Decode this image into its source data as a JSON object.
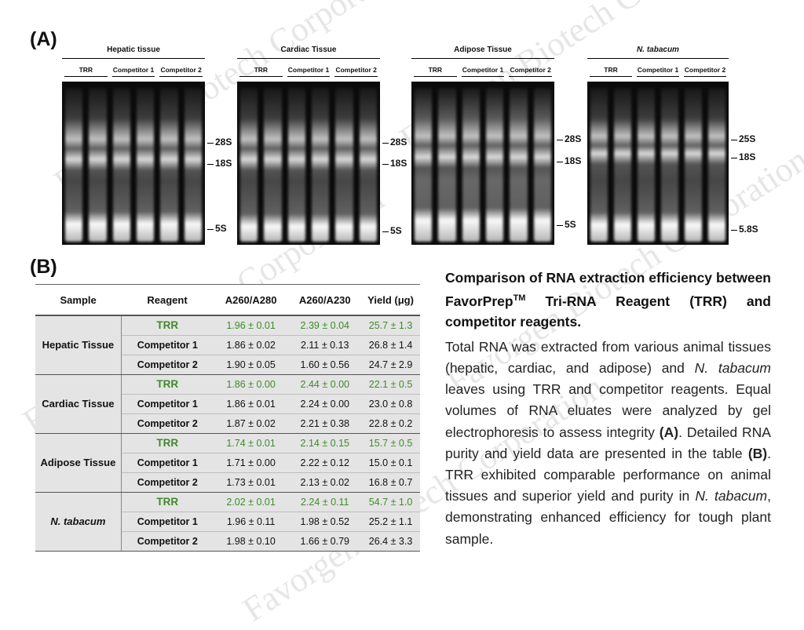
{
  "panel_a_label": "(A)",
  "panel_b_label": "(B)",
  "gels": [
    {
      "title": "Hepatic tissue",
      "title_italic": false,
      "lanes": [
        "TRR",
        "Competitor 1",
        "Competitor 2"
      ],
      "markers": [
        "28S",
        "18S",
        "5S"
      ]
    },
    {
      "title": "Cardiac Tissue",
      "title_italic": false,
      "lanes": [
        "TRR",
        "Competitor 1",
        "Competitor 2"
      ],
      "markers": [
        "28S",
        "18S",
        "5S"
      ]
    },
    {
      "title": "Adipose Tissue",
      "title_italic": false,
      "lanes": [
        "TRR",
        "Competitor 1",
        "Competitor 2"
      ],
      "markers": [
        "28S",
        "18S",
        "5S"
      ]
    },
    {
      "title": "N. tabacum",
      "title_italic": true,
      "lanes": [
        "TRR",
        "Competitor 1",
        "Competitor 2"
      ],
      "markers": [
        "25S",
        "18S",
        "5.8S"
      ]
    }
  ],
  "table": {
    "headers": [
      "Sample",
      "Reagent",
      "A260/A280",
      "A260/A230",
      "Yield (μg)"
    ],
    "groups": [
      {
        "sample": "Hepatic Tissue",
        "italic": false,
        "rows": [
          {
            "reagent": "TRR",
            "a280": "1.96 ± 0.01",
            "a230": "2.39 ± 0.04",
            "yield": "25.7 ± 1.3",
            "highlight": true
          },
          {
            "reagent": "Competitor 1",
            "a280": "1.86 ± 0.02",
            "a230": "2.11 ± 0.13",
            "yield": "26.8 ± 1.4",
            "highlight": false
          },
          {
            "reagent": "Competitor 2",
            "a280": "1.90 ± 0.05",
            "a230": "1.60 ± 0.56",
            "yield": "24.7 ± 2.9",
            "highlight": false
          }
        ]
      },
      {
        "sample": "Cardiac Tissue",
        "italic": false,
        "rows": [
          {
            "reagent": "TRR",
            "a280": "1.86 ± 0.00",
            "a230": "2.44 ± 0.00",
            "yield": "22.1 ± 0.5",
            "highlight": true
          },
          {
            "reagent": "Competitor 1",
            "a280": "1.86 ± 0.01",
            "a230": "2.24 ± 0.00",
            "yield": "23.0 ± 0.8",
            "highlight": false
          },
          {
            "reagent": "Competitor 2",
            "a280": "1.87 ± 0.02",
            "a230": "2.21 ± 0.38",
            "yield": "22.8 ± 0.2",
            "highlight": false
          }
        ]
      },
      {
        "sample": "Adipose Tissue",
        "italic": false,
        "rows": [
          {
            "reagent": "TRR",
            "a280": "1.74 ± 0.01",
            "a230": "2.14 ± 0.15",
            "yield": "15.7 ± 0.5",
            "highlight": true
          },
          {
            "reagent": "Competitor 1",
            "a280": "1.71 ± 0.00",
            "a230": "2.22 ± 0.12",
            "yield": "15.0 ± 0.1",
            "highlight": false
          },
          {
            "reagent": "Competitor 2",
            "a280": "1.73 ± 0.01",
            "a230": "2.13 ± 0.02",
            "yield": "16.8 ± 0.7",
            "highlight": false
          }
        ]
      },
      {
        "sample": "N. tabacum",
        "italic": true,
        "rows": [
          {
            "reagent": "TRR",
            "a280": "2.02 ± 0.01",
            "a230": "2.24 ± 0.11",
            "yield": "54.7 ± 1.0",
            "highlight": true
          },
          {
            "reagent": "Competitor 1",
            "a280": "1.96 ± 0.11",
            "a230": "1.98 ± 0.52",
            "yield": "25.2 ± 1.1",
            "highlight": false
          },
          {
            "reagent": "Competitor 2",
            "a280": "1.98 ± 0.10",
            "a230": "1.66 ± 0.79",
            "yield": "26.4 ± 3.3",
            "highlight": false
          }
        ]
      }
    ]
  },
  "caption": {
    "title_pre": "Comparison of RNA extraction efficiency between FavorPrep",
    "title_sup": "TM",
    "title_post": " Tri-RNA Reagent (TRR) and competitor reagents.",
    "body": [
      {
        "t": "Total RNA was extracted from various animal tissues (hepatic, cardiac, and adipose) and ",
        "s": "normal"
      },
      {
        "t": "N. tabacum",
        "s": "italic"
      },
      {
        "t": " leaves using TRR and competitor reagents. Equal volumes of RNA eluates were analyzed by gel electrophoresis to assess integrity ",
        "s": "normal"
      },
      {
        "t": "(A)",
        "s": "bold"
      },
      {
        "t": ". Detailed RNA purity and yield data are presented in the table ",
        "s": "normal"
      },
      {
        "t": "(B)",
        "s": "bold"
      },
      {
        "t": ". TRR exhibited comparable performance on animal tissues and superior yield and purity in ",
        "s": "normal"
      },
      {
        "t": "N. tabacum",
        "s": "italic"
      },
      {
        "t": ", demonstrating enhanced efficiency for tough plant sample.",
        "s": "normal"
      }
    ]
  },
  "watermark_text": "Favorgen Biotech Corporation",
  "colors": {
    "trr_green": "#3f8a2a",
    "table_bg": "#e4e4e4",
    "gel_bg": "#0b0b0b"
  }
}
